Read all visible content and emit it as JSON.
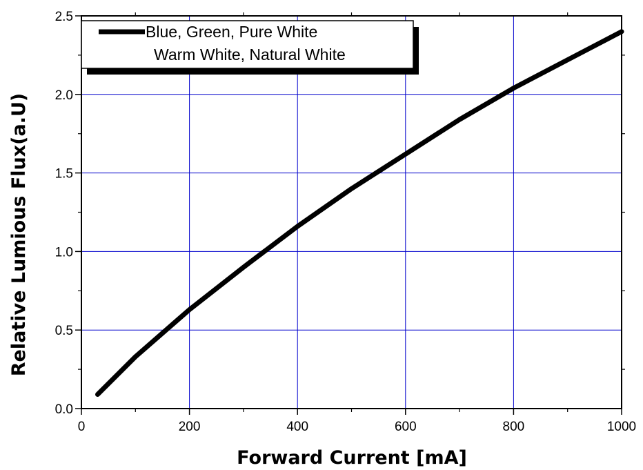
{
  "chart_data": {
    "type": "line",
    "xlabel": "Forward Current [mA]",
    "ylabel": "Relative Lumious Flux(a.U)",
    "xlim": [
      0,
      1000
    ],
    "ylim": [
      0,
      2.5
    ],
    "x_ticks": [
      "0",
      "200",
      "400",
      "600",
      "800",
      "1000"
    ],
    "y_ticks": [
      "0.0",
      "0.5",
      "1.0",
      "1.5",
      "2.0",
      "2.5"
    ],
    "grid": true,
    "grid_color": "#0000cc",
    "line_color": "#000000",
    "legend_position": "top-left",
    "legend": [
      "Blue, Green, Pure White",
      "Warm White, Natural White"
    ],
    "series": [
      {
        "x": [
          30,
          100,
          200,
          300,
          400,
          500,
          600,
          700,
          800,
          900,
          1000
        ],
        "y": [
          0.09,
          0.33,
          0.63,
          0.9,
          1.16,
          1.4,
          1.62,
          1.84,
          2.04,
          2.22,
          2.4
        ]
      }
    ]
  }
}
